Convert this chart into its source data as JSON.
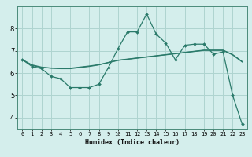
{
  "xlabel": "Humidex (Indice chaleur)",
  "background_color": "#d4eeec",
  "grid_color": "#aed4d0",
  "line_color": "#2a7a6a",
  "xlim": [
    -0.5,
    23.5
  ],
  "ylim": [
    3.5,
    9.0
  ],
  "yticks": [
    4,
    5,
    6,
    7,
    8
  ],
  "xticks": [
    0,
    1,
    2,
    3,
    4,
    5,
    6,
    7,
    8,
    9,
    10,
    11,
    12,
    13,
    14,
    15,
    16,
    17,
    18,
    19,
    20,
    21,
    22,
    23
  ],
  "line1_x": [
    0,
    1,
    2,
    3,
    4,
    5,
    6,
    7,
    8,
    9,
    10,
    11,
    12,
    13,
    14,
    15,
    16,
    17,
    18,
    19,
    20,
    21,
    22,
    23
  ],
  "line1_y": [
    6.6,
    6.3,
    6.2,
    5.85,
    5.75,
    5.35,
    5.35,
    5.35,
    5.5,
    6.25,
    7.1,
    7.85,
    7.85,
    8.65,
    7.75,
    7.35,
    6.6,
    7.25,
    7.3,
    7.3,
    6.85,
    6.95,
    5.0,
    3.7
  ],
  "line2_x": [
    0,
    1,
    2,
    3,
    4,
    5,
    6,
    7,
    8,
    9,
    10,
    11,
    12,
    13,
    14,
    15,
    16,
    17,
    18,
    19,
    20,
    21,
    22,
    23
  ],
  "line2_y": [
    6.6,
    6.37,
    6.27,
    6.22,
    6.2,
    6.2,
    6.25,
    6.3,
    6.37,
    6.47,
    6.57,
    6.62,
    6.67,
    6.72,
    6.77,
    6.82,
    6.87,
    6.92,
    6.97,
    7.02,
    7.02,
    7.02,
    6.82,
    6.5
  ],
  "line3_x": [
    0,
    1,
    2,
    3,
    4,
    5,
    6,
    7,
    8,
    9,
    10,
    11,
    12,
    13,
    14,
    15,
    16,
    17,
    18,
    19,
    20,
    21,
    22,
    23
  ],
  "line3_y": [
    6.6,
    6.35,
    6.25,
    6.23,
    6.22,
    6.22,
    6.27,
    6.32,
    6.38,
    6.48,
    6.58,
    6.63,
    6.68,
    6.73,
    6.78,
    6.83,
    6.88,
    6.93,
    6.98,
    7.03,
    7.03,
    7.03,
    6.83,
    6.52
  ]
}
